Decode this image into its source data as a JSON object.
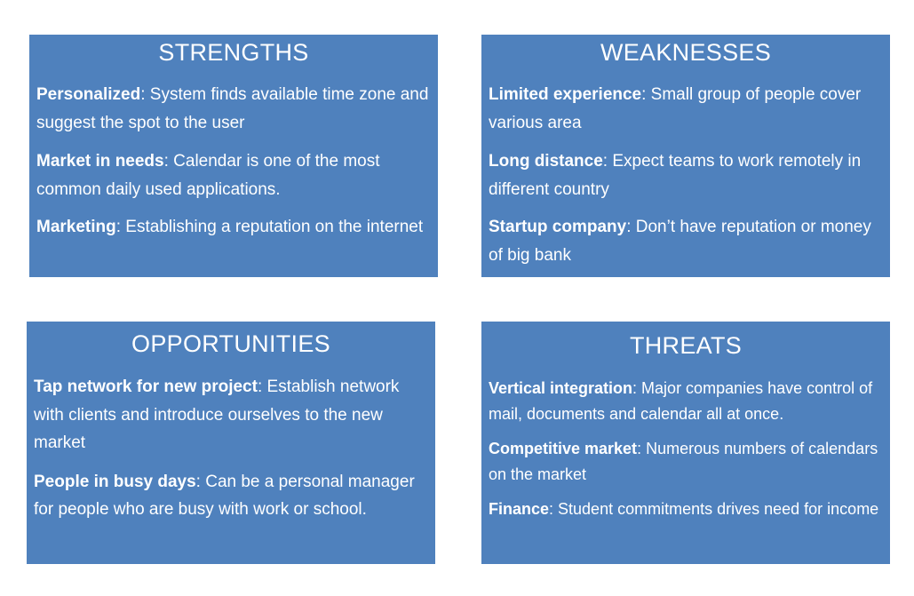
{
  "strengths": {
    "title": "STRENGTHS",
    "items": [
      {
        "term": "Personalized",
        "text": ": System finds available time zone and suggest the spot to the user"
      },
      {
        "term": "Market in needs",
        "text": ":  Calendar is one of the most common daily used applications."
      },
      {
        "term": "Marketing",
        "text": ": Establishing a reputation on the internet"
      }
    ]
  },
  "weaknesses": {
    "title": "WEAKNESSES",
    "items": [
      {
        "term": "Limited experience",
        "text": ": Small group of people cover various area"
      },
      {
        "term": "Long distance",
        "text": ": Expect teams to work remotely in different country"
      },
      {
        "term": "Startup company",
        "text": ": Don’t have reputation or money of big bank"
      }
    ]
  },
  "opportunities": {
    "title": "OPPORTUNITIES",
    "items": [
      {
        "term": "Tap network for new project",
        "text": ": Establish network with clients and introduce ourselves to the new market"
      },
      {
        "term": "People in busy days",
        "text": ": Can be a personal manager for people who are busy with work or school."
      }
    ]
  },
  "threats": {
    "title": "THREATS",
    "items": [
      {
        "term": "Vertical integration",
        "text": ": Major companies have control of mail, documents and calendar all at once."
      },
      {
        "term": "Competitive market",
        "text": ": Numerous numbers of calendars on the market"
      },
      {
        "term": "Finance",
        "text": ": Student commitments drives need for income"
      }
    ]
  },
  "colors": {
    "box_fill": "#4f81bd",
    "text": "#ffffff"
  }
}
